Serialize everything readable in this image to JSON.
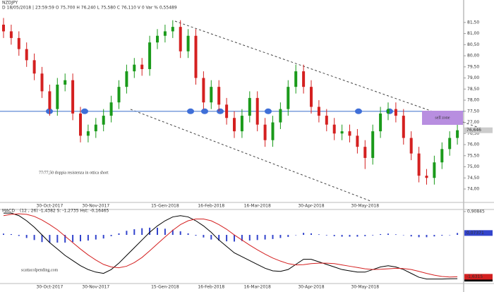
{
  "chart_data": [
    {
      "type": "candlestick",
      "title": "NZDJPY",
      "subtitle": "D 18/05/2018 | 23:59:59  O 75,700  H 76,240  L 75,580  C 76,110  V 0  Var % 0,55489",
      "categories": [
        null,
        null,
        null,
        null,
        null,
        null,
        "30-Oct-2017",
        null,
        null,
        null,
        null,
        null,
        "30-Nov-2017",
        null,
        null,
        null,
        null,
        null,
        null,
        null,
        null,
        "15-Gen-2018",
        null,
        null,
        null,
        null,
        null,
        "16-Feb-2018",
        null,
        null,
        null,
        null,
        null,
        "16-Mar-2018",
        null,
        null,
        null,
        null,
        null,
        null,
        "30-Apr-2018",
        null,
        null,
        null,
        null,
        null,
        null,
        "30-May-2018",
        null,
        null,
        null,
        null,
        null,
        null,
        null,
        null,
        null,
        null,
        null,
        null
      ],
      "open": [
        81.4,
        81.1,
        80.8,
        80.3,
        79.8,
        79.2,
        78.4,
        77.6,
        78.7,
        78.9,
        77.4,
        76.4,
        76.6,
        76.9,
        77.3,
        77.9,
        78.6,
        79.3,
        79.6,
        79.4,
        80.6,
        80.9,
        81.1,
        81.3,
        80.2,
        80.9,
        79.0,
        77.9,
        78.6,
        77.8,
        77.2,
        76.6,
        77.3,
        78.1,
        76.9,
        76.2,
        77.0,
        77.6,
        78.6,
        79.3,
        78.6,
        77.7,
        77.3,
        76.9,
        76.5,
        76.6,
        76.4,
        75.9,
        75.4,
        76.6,
        77.4,
        77.6,
        77.3,
        76.3,
        75.6,
        74.6,
        74.5,
        75.2,
        75.8,
        76.3
      ],
      "high": [
        81.7,
        81.4,
        81.1,
        80.6,
        80.1,
        79.5,
        78.7,
        79.0,
        79.2,
        79.2,
        77.7,
        76.9,
        77.2,
        77.6,
        78.2,
        78.9,
        79.6,
        79.9,
        79.9,
        80.9,
        81.2,
        81.4,
        81.6,
        81.6,
        81.2,
        81.2,
        79.3,
        78.9,
        78.9,
        78.1,
        77.5,
        77.6,
        78.4,
        78.4,
        77.2,
        77.3,
        77.9,
        78.9,
        79.6,
        79.6,
        78.9,
        78.0,
        77.6,
        77.2,
        76.9,
        76.9,
        76.7,
        76.2,
        76.9,
        77.7,
        77.9,
        77.9,
        77.6,
        76.6,
        75.9,
        74.9,
        75.5,
        76.1,
        76.6,
        76.95
      ],
      "low": [
        80.8,
        80.5,
        80.0,
        79.5,
        78.9,
        78.1,
        77.3,
        77.3,
        78.4,
        77.1,
        76.1,
        76.1,
        76.3,
        76.6,
        77.0,
        77.6,
        78.3,
        79.0,
        79.1,
        79.1,
        80.3,
        80.6,
        80.8,
        79.9,
        79.9,
        78.7,
        77.6,
        77.6,
        77.5,
        76.9,
        76.3,
        76.3,
        77.0,
        76.6,
        75.9,
        75.9,
        76.7,
        77.3,
        78.3,
        78.3,
        77.4,
        77.0,
        76.6,
        76.2,
        76.2,
        76.1,
        75.6,
        74.9,
        75.1,
        76.3,
        77.1,
        77.0,
        76.0,
        75.3,
        74.3,
        74.2,
        74.2,
        74.9,
        75.5,
        76.0
      ],
      "close": [
        81.1,
        80.8,
        80.3,
        79.8,
        79.2,
        78.4,
        77.6,
        78.7,
        78.9,
        77.4,
        76.4,
        76.6,
        76.9,
        77.3,
        77.9,
        78.6,
        79.3,
        79.6,
        79.4,
        80.6,
        80.9,
        81.1,
        81.3,
        80.2,
        80.9,
        79.0,
        77.9,
        78.6,
        77.8,
        77.2,
        76.6,
        77.3,
        78.1,
        76.9,
        76.2,
        77.0,
        77.6,
        78.6,
        79.3,
        78.6,
        77.7,
        77.3,
        76.9,
        76.5,
        76.6,
        76.4,
        75.9,
        75.4,
        76.6,
        77.4,
        77.6,
        77.3,
        76.3,
        75.6,
        74.6,
        74.5,
        75.2,
        75.8,
        76.3,
        76.646
      ],
      "value_labels": [
        null,
        null,
        null,
        null,
        null,
        null,
        null,
        null,
        null,
        null,
        null,
        null,
        null,
        null,
        null,
        null,
        null,
        null,
        null,
        null,
        null,
        null,
        null,
        null,
        null,
        null,
        null,
        null,
        null,
        null,
        null,
        null,
        null,
        null,
        null,
        null,
        null,
        null,
        null,
        null,
        null,
        null,
        null,
        null,
        null,
        null,
        null,
        null,
        null,
        null,
        null,
        null,
        null,
        null,
        null,
        null,
        null,
        null,
        null,
        "76,646"
      ],
      "up_color": "#1a9a1a",
      "down_color": "#d42020",
      "ylim": [
        73.46,
        82.13
      ],
      "yticks": [
        {
          "value": 74,
          "label": "74,00"
        },
        {
          "value": 74.5,
          "label": "74,50"
        },
        {
          "value": 75,
          "label": "75,00"
        },
        {
          "value": 75.5,
          "label": "75,50"
        },
        {
          "value": 76,
          "label": "76,00"
        },
        {
          "value": 76.5,
          "label": "76,50"
        },
        {
          "value": 77,
          "label": "77,00"
        },
        {
          "value": 77.5,
          "label": "77,50"
        },
        {
          "value": 78,
          "label": "78,00"
        },
        {
          "value": 78.5,
          "label": "78,50"
        },
        {
          "value": 79,
          "label": "79,00"
        },
        {
          "value": 79.5,
          "label": "79,50"
        },
        {
          "value": 80,
          "label": "80,00"
        },
        {
          "value": 80.5,
          "label": "80,50"
        },
        {
          "value": 81,
          "label": "81,00"
        },
        {
          "value": 81.5,
          "label": "81,50"
        }
      ],
      "hline": {
        "value": 77.5,
        "color": "#4f7fd0"
      },
      "annotations": [
        "77/77,50 doppia resistenza in ottica short",
        "sell zone"
      ]
    },
    {
      "type": "macd",
      "title": "MACD",
      "subtitle": "(12 , 26)  -1,4382   S: -1,2735   Hst: -0,16465",
      "series": [
        {
          "type": "bar",
          "color": "#3344cc",
          "values": [
            0.05,
            0.03,
            -0.04,
            -0.12,
            -0.2,
            -0.28,
            -0.3,
            -0.3,
            -0.3,
            -0.28,
            -0.25,
            -0.22,
            -0.18,
            -0.14,
            -0.05,
            0.06,
            0.16,
            0.22,
            0.26,
            0.28,
            0.28,
            0.24,
            0.2,
            0.14,
            0.06,
            -0.03,
            -0.1,
            -0.18,
            -0.22,
            -0.25,
            -0.26,
            -0.24,
            -0.22,
            -0.2,
            -0.18,
            -0.16,
            -0.12,
            -0.08,
            0,
            0.08,
            0.06,
            0.02,
            -0.02,
            -0.05,
            -0.07,
            -0.07,
            -0.07,
            -0.05,
            -0.02,
            0.03,
            0.05,
            0.02,
            -0.01,
            -0.06,
            -0.09,
            -0.09,
            -0.06,
            -0.03,
            0,
            0.07371
          ],
          "value_labels": [
            null,
            null,
            null,
            null,
            null,
            null,
            null,
            null,
            null,
            null,
            null,
            null,
            null,
            null,
            null,
            null,
            null,
            null,
            null,
            null,
            null,
            null,
            null,
            null,
            null,
            null,
            null,
            null,
            null,
            null,
            null,
            null,
            null,
            null,
            null,
            null,
            null,
            null,
            null,
            null,
            null,
            null,
            null,
            null,
            null,
            null,
            null,
            null,
            null,
            null,
            null,
            null,
            null,
            null,
            null,
            null,
            null,
            null,
            null,
            "0,07371"
          ]
        },
        {
          "type": "line",
          "color": "#000000",
          "values": [
            0.85,
            0.85,
            0.75,
            0.55,
            0.3,
            0,
            -0.3,
            -0.55,
            -0.8,
            -1.0,
            -1.2,
            -1.35,
            -1.45,
            -1.5,
            -1.35,
            -1.1,
            -0.8,
            -0.5,
            -0.2,
            0.1,
            0.35,
            0.55,
            0.7,
            0.75,
            0.7,
            0.55,
            0.35,
            0.1,
            -0.2,
            -0.45,
            -0.7,
            -0.85,
            -1.0,
            -1.15,
            -1.3,
            -1.4,
            -1.42,
            -1.35,
            -1.15,
            -0.95,
            -0.95,
            -1.05,
            -1.15,
            -1.25,
            -1.35,
            -1.4,
            -1.45,
            -1.45,
            -1.35,
            -1.25,
            -1.2,
            -1.25,
            -1.35,
            -1.5,
            -1.65,
            -1.72,
            -1.72,
            -1.72,
            -1.71,
            -1.7052
          ],
          "value_labels": [
            null,
            null,
            null,
            null,
            null,
            null,
            null,
            null,
            null,
            null,
            null,
            null,
            null,
            null,
            null,
            null,
            null,
            null,
            null,
            null,
            null,
            null,
            null,
            null,
            null,
            null,
            null,
            null,
            null,
            null,
            null,
            null,
            null,
            null,
            null,
            null,
            null,
            null,
            null,
            null,
            null,
            null,
            null,
            null,
            null,
            null,
            null,
            null,
            null,
            null,
            null,
            null,
            null,
            null,
            null,
            null,
            null,
            null,
            null,
            "-1,7052"
          ]
        },
        {
          "type": "line",
          "color": "#d42020",
          "values": [
            0.75,
            0.8,
            0.82,
            0.8,
            0.72,
            0.58,
            0.4,
            0.2,
            -0.05,
            -0.3,
            -0.55,
            -0.78,
            -0.98,
            -1.15,
            -1.25,
            -1.28,
            -1.22,
            -1.08,
            -0.88,
            -0.62,
            -0.35,
            -0.08,
            0.18,
            0.4,
            0.55,
            0.62,
            0.62,
            0.55,
            0.4,
            0.22,
            0,
            -0.2,
            -0.4,
            -0.58,
            -0.75,
            -0.9,
            -1.02,
            -1.12,
            -1.17,
            -1.16,
            -1.12,
            -1.1,
            -1.1,
            -1.12,
            -1.17,
            -1.22,
            -1.27,
            -1.32,
            -1.35,
            -1.34,
            -1.32,
            -1.3,
            -1.31,
            -1.35,
            -1.42,
            -1.5,
            -1.57,
            -1.62,
            -1.64,
            -1.6315
          ],
          "value_labels": [
            null,
            null,
            null,
            null,
            null,
            null,
            null,
            null,
            null,
            null,
            null,
            null,
            null,
            null,
            null,
            null,
            null,
            null,
            null,
            null,
            null,
            null,
            null,
            null,
            null,
            null,
            null,
            null,
            null,
            null,
            null,
            null,
            null,
            null,
            null,
            null,
            null,
            null,
            null,
            null,
            null,
            null,
            null,
            null,
            null,
            null,
            null,
            null,
            null,
            null,
            null,
            null,
            null,
            null,
            null,
            null,
            null,
            null,
            null,
            "-1,6315"
          ]
        }
      ],
      "ylim": [
        -1.84,
        0.935
      ],
      "yticks": [
        {
          "value": 0.90845,
          "label": "0,90845"
        }
      ],
      "watermark": "scattacolpending.com"
    }
  ]
}
